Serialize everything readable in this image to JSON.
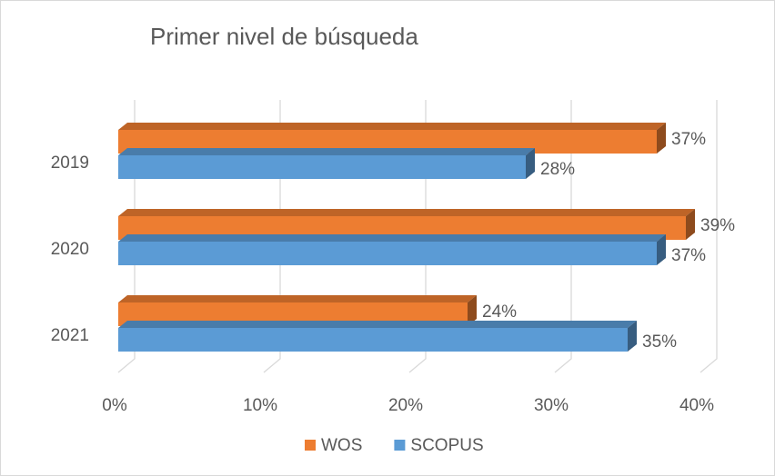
{
  "chart_data": {
    "type": "bar",
    "orientation": "horizontal",
    "title": "Primer nivel de búsqueda",
    "categories": [
      "2019",
      "2020",
      "2021"
    ],
    "series": [
      {
        "name": "WOS",
        "color": "#ed7d31",
        "values": [
          37,
          39,
          24
        ],
        "value_labels": [
          "37%",
          "39%",
          "24%"
        ]
      },
      {
        "name": "SCOPUS",
        "color": "#5b9bd5",
        "values": [
          28,
          37,
          35
        ],
        "value_labels": [
          "28%",
          "37%",
          "35%"
        ]
      }
    ],
    "xlim": [
      0,
      40
    ],
    "xticks": [
      {
        "value": 0,
        "label": "0%"
      },
      {
        "value": 10,
        "label": "10%"
      },
      {
        "value": 20,
        "label": "20%"
      },
      {
        "value": 30,
        "label": "30%"
      },
      {
        "value": 40,
        "label": "40%"
      }
    ],
    "grid": true,
    "legend": "bottom"
  }
}
